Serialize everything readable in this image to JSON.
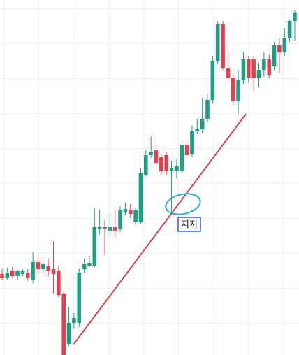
{
  "chart_data": {
    "type": "candlestick",
    "open": [
      116,
      110,
      120,
      113,
      116,
      118,
      108,
      133,
      123,
      128,
      123,
      120,
      88,
      16,
      46,
      46,
      123,
      128,
      128,
      180,
      183,
      178,
      183,
      180,
      205,
      208,
      190,
      190,
      258,
      286,
      293,
      283,
      286,
      263,
      264,
      263,
      300,
      288,
      320,
      323,
      338,
      365,
      420,
      473,
      410,
      396,
      363,
      393,
      423,
      423,
      396,
      408,
      423,
      413,
      443,
      433,
      453,
      478
    ],
    "high": [
      123,
      125,
      126,
      122,
      123,
      123,
      148,
      143,
      135,
      138,
      163,
      128,
      90,
      68,
      60,
      123,
      138,
      142,
      210,
      208,
      193,
      203,
      208,
      213,
      218,
      216,
      210,
      268,
      293,
      313,
      308,
      288,
      290,
      278,
      280,
      303,
      308,
      328,
      338,
      368,
      373,
      428,
      478,
      478,
      438,
      403,
      408,
      433,
      428,
      428,
      418,
      433,
      430,
      448,
      453,
      468,
      480,
      493
    ],
    "low": [
      108,
      108,
      110,
      108,
      113,
      106,
      103,
      118,
      118,
      113,
      88,
      83,
      0,
      13,
      38,
      40,
      118,
      126,
      126,
      173,
      143,
      170,
      168,
      176,
      200,
      196,
      186,
      188,
      256,
      282,
      270,
      258,
      258,
      200,
      253,
      260,
      280,
      283,
      316,
      318,
      333,
      360,
      416,
      408,
      390,
      358,
      345,
      388,
      390,
      378,
      383,
      398,
      396,
      408,
      403,
      428,
      448,
      450
    ],
    "close": [
      110,
      118,
      113,
      120,
      120,
      110,
      133,
      123,
      130,
      120,
      116,
      86,
      0,
      46,
      53,
      118,
      130,
      131,
      183,
      183,
      180,
      183,
      178,
      208,
      209,
      202,
      208,
      260,
      286,
      291,
      275,
      263,
      263,
      268,
      270,
      300,
      286,
      320,
      324,
      338,
      365,
      420,
      473,
      410,
      396,
      363,
      393,
      423,
      396,
      396,
      408,
      423,
      400,
      443,
      433,
      453,
      478,
      490
    ],
    "up_color": "#1f9e86",
    "down_color": "#e5404f",
    "ylim": [
      0,
      508
    ],
    "trendline": {
      "x": [
        14,
        47.5
      ],
      "y": [
        16,
        345
      ],
      "color": "#d8434e"
    },
    "annotation": {
      "text": "지지"
    }
  }
}
